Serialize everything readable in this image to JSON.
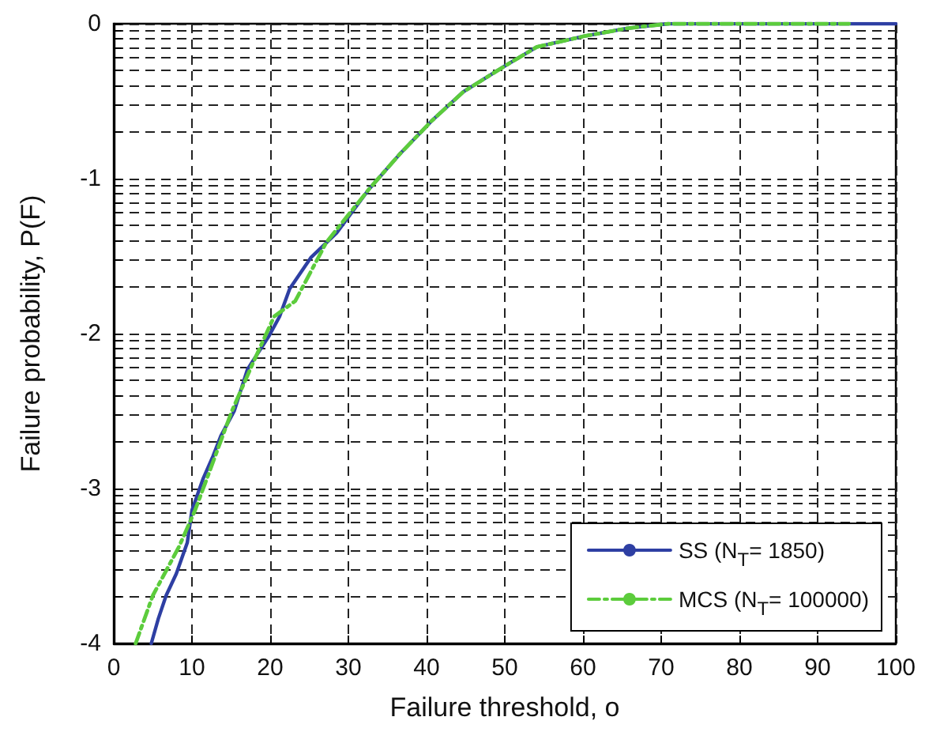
{
  "chart_data": {
    "type": "line",
    "xlabel": "Failure threshold, o",
    "ylabel": "Failure probability, P(F)",
    "xlim": [
      0,
      100
    ],
    "xticks": [
      0,
      10,
      20,
      30,
      40,
      50,
      60,
      70,
      80,
      90,
      100
    ],
    "ylim": [
      -4,
      0
    ],
    "yticks": [
      -4,
      -3,
      -2,
      -1,
      0
    ],
    "grid": true,
    "legend": "bottom right",
    "marker": "none",
    "series": [
      {
        "name": "SS (N$_{T}$= 1850)",
        "color": "#2e3fa3",
        "line_style": "solid",
        "x": [
          4.8,
          5.7,
          6.7,
          8.0,
          9.4,
          10.0,
          11.4,
          12.7,
          13.7,
          15.4,
          17.1,
          19.8,
          21.2,
          22.5,
          25.2,
          28.5,
          32.6,
          36.6,
          40.6,
          44.7,
          50.1,
          54.1,
          60.2,
          65.6,
          70.9,
          100
        ],
        "values": [
          -4,
          -3.84,
          -3.69,
          -3.55,
          -3.35,
          -3.14,
          -2.94,
          -2.79,
          -2.66,
          -2.5,
          -2.23,
          -2.02,
          -1.89,
          -1.71,
          -1.51,
          -1.35,
          -1.07,
          -0.84,
          -0.63,
          -0.44,
          -0.27,
          -0.15,
          -0.08,
          -0.03,
          0,
          0
        ]
      },
      {
        "name": "MCS (N$_{T}$= 100000)",
        "color": "#5ccc3c",
        "line_style": "dashed",
        "x": [
          2.8,
          5.0,
          8.3,
          10.4,
          12.1,
          15.1,
          17.8,
          20.5,
          23.2,
          27.2,
          32.6,
          36.6,
          40.6,
          44.7,
          50.1,
          54.1,
          60.2,
          65.6,
          70.9,
          94
        ],
        "values": [
          -4,
          -3.69,
          -3.38,
          -3.14,
          -2.91,
          -2.5,
          -2.19,
          -1.89,
          -1.79,
          -1.41,
          -1.07,
          -0.84,
          -0.63,
          -0.44,
          -0.27,
          -0.15,
          -0.08,
          -0.03,
          0,
          0
        ]
      }
    ]
  }
}
